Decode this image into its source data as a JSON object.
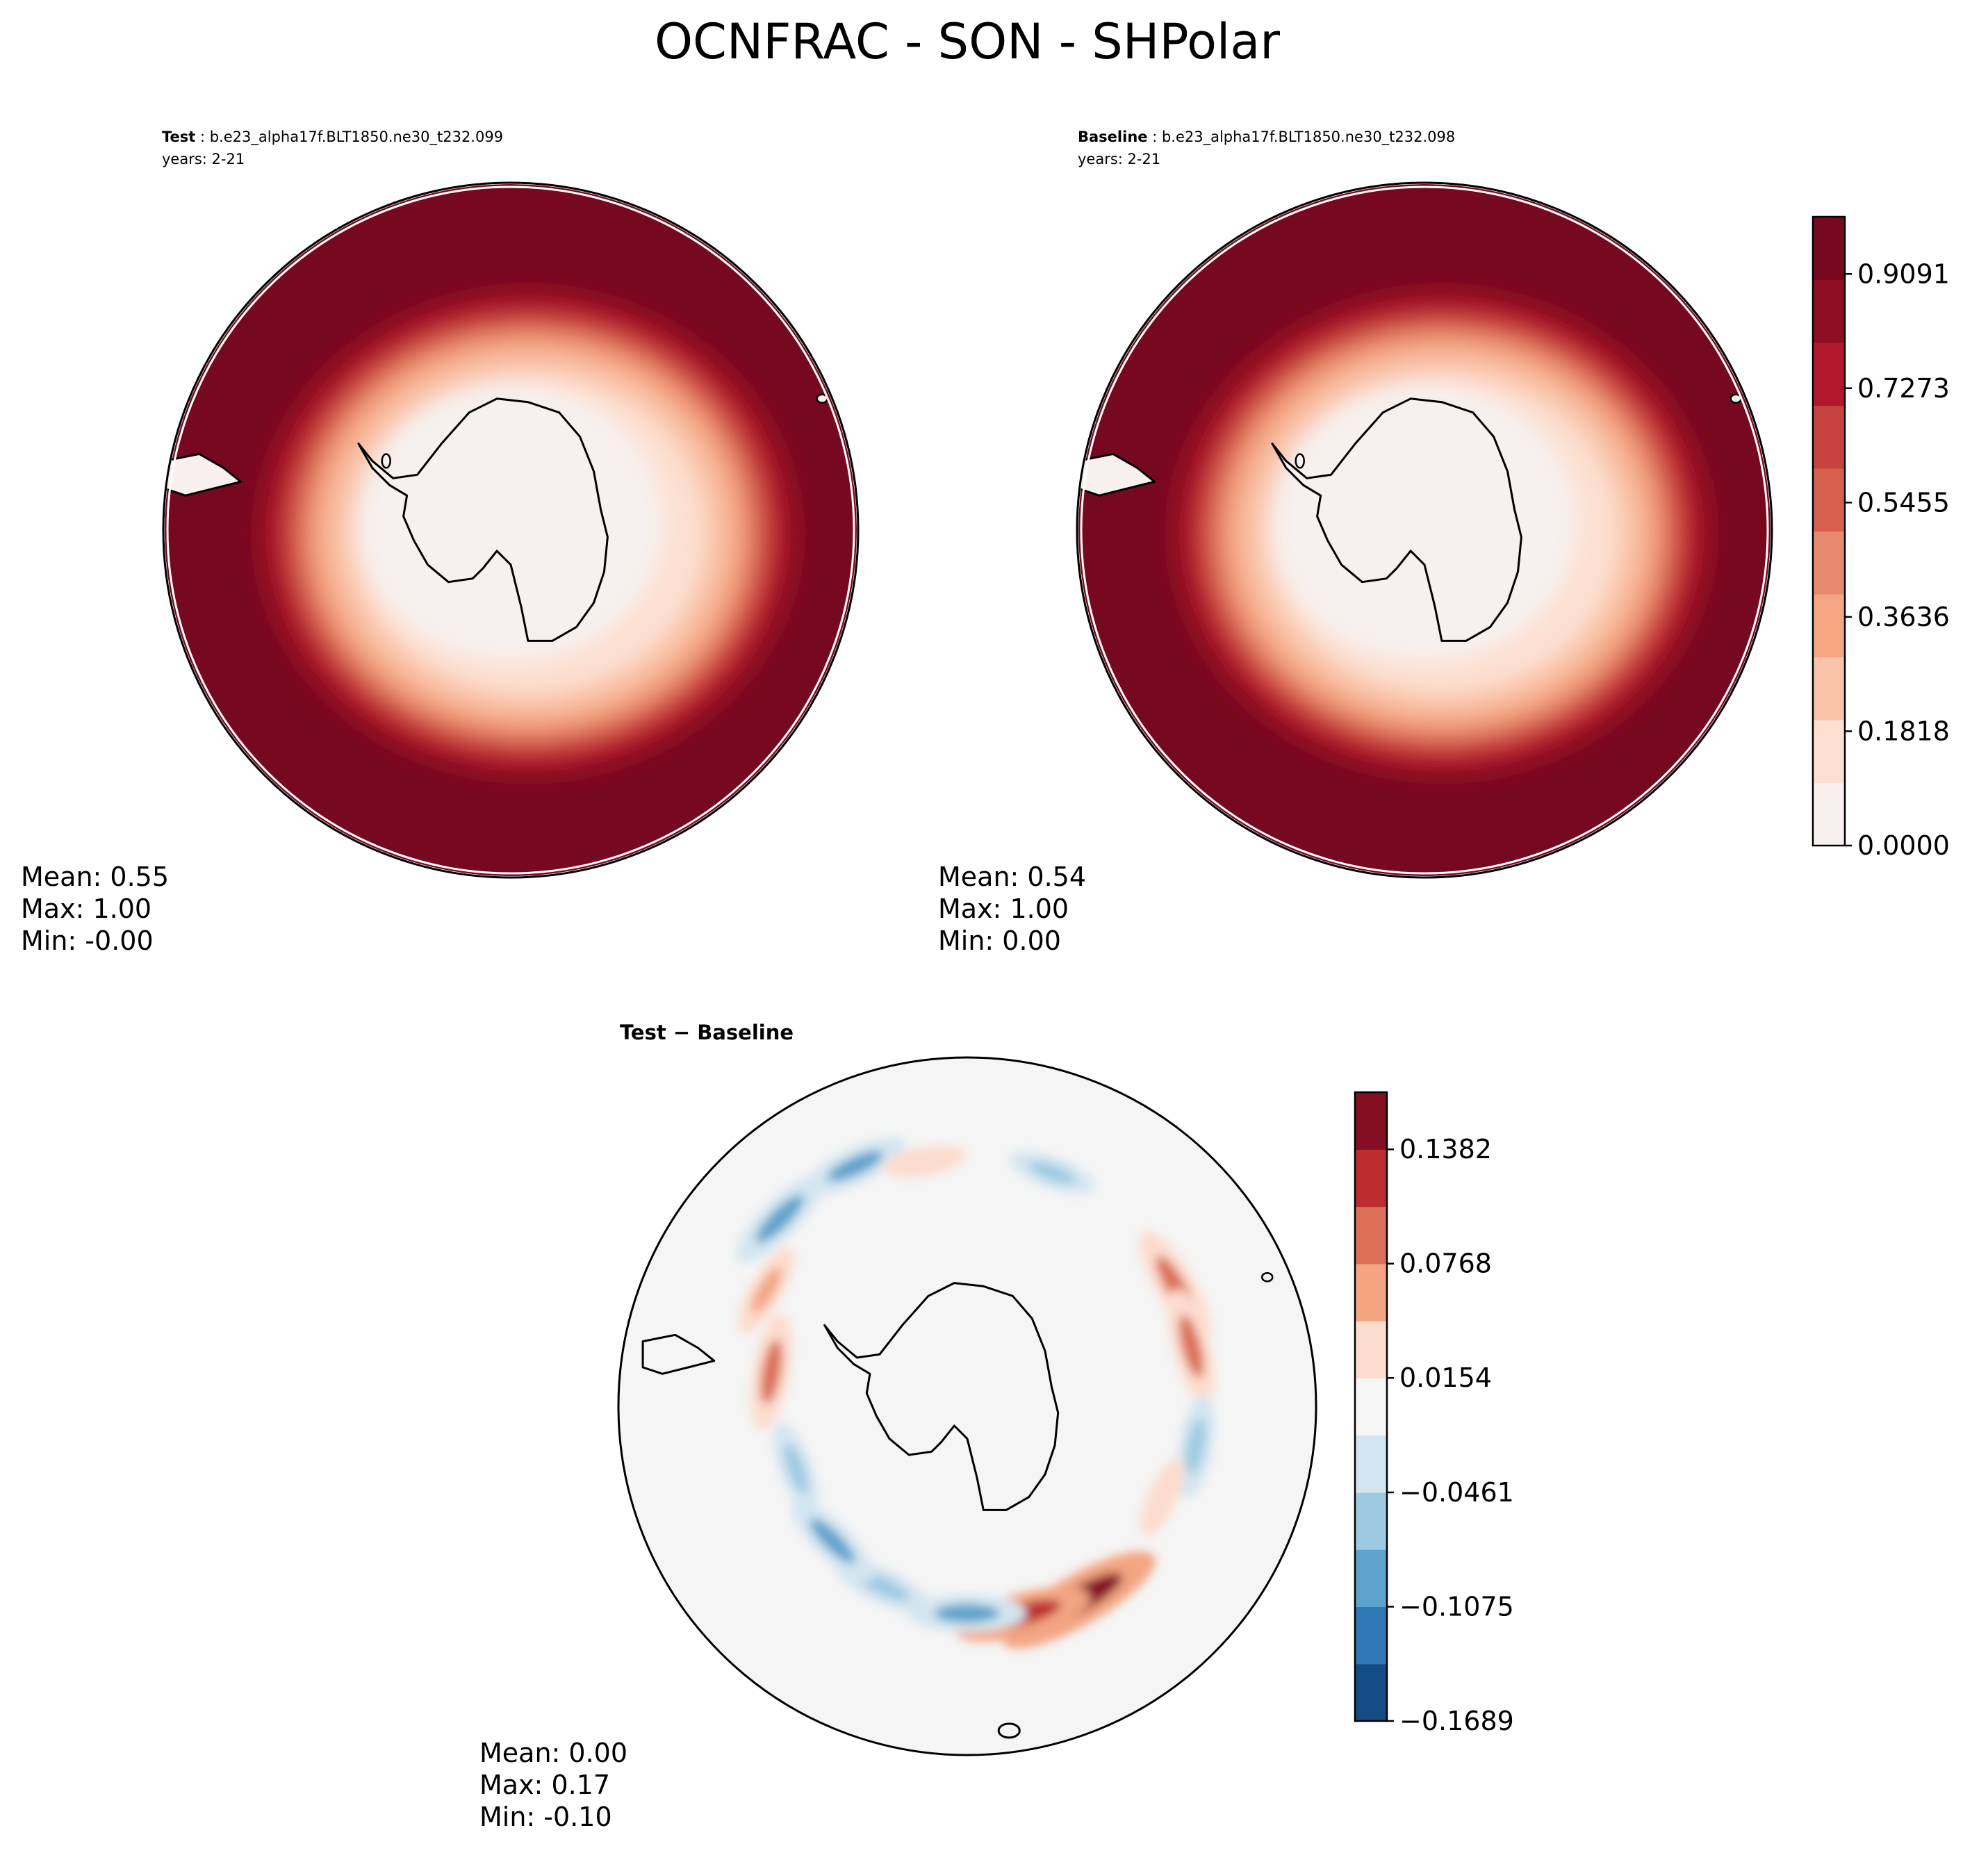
{
  "chart_data": {
    "type": "heatmap",
    "title": "OCNFRAC - SON - SHPolar",
    "panels": [
      {
        "id": "test",
        "label_bold": "Test",
        "label_rest": " : b.e23_alpha17f.BLT1850.ne30_t232.099",
        "years": "years: 2-21",
        "stats": {
          "mean": "Mean:  0.55",
          "max": "Max:  1.00",
          "min": "Min: -0.00"
        },
        "ice_zone": {
          "inner_ring": 0.1,
          "outer_ring": 0.95
        }
      },
      {
        "id": "baseline",
        "label_bold": "Baseline",
        "label_rest": " : b.e23_alpha17f.BLT1850.ne30_t232.098",
        "years": "years: 2-21",
        "stats": {
          "mean": "Mean:  0.54",
          "max": "Max:  1.00",
          "min": "Min:  0.00"
        },
        "ice_zone": {
          "inner_ring": 0.1,
          "outer_ring": 0.95
        }
      },
      {
        "id": "diff",
        "title": "Test − Baseline",
        "stats": {
          "mean": "Mean:  0.00",
          "max": "Max:  0.17",
          "min": "Min: -0.10"
        },
        "anomalies": [
          {
            "lon_deg": 60,
            "lat_deg": -61,
            "value": 0.1
          },
          {
            "lon_deg": 75,
            "lat_deg": -62,
            "value": 0.09
          },
          {
            "lon_deg": 150,
            "lat_deg": -63,
            "value": 0.17
          },
          {
            "lon_deg": 165,
            "lat_deg": -64,
            "value": 0.12
          },
          {
            "lon_deg": 180,
            "lat_deg": -65,
            "value": -0.09
          },
          {
            "lon_deg": 205,
            "lat_deg": -66,
            "value": -0.07
          },
          {
            "lon_deg": 225,
            "lat_deg": -67,
            "value": -0.08
          },
          {
            "lon_deg": 250,
            "lat_deg": -68,
            "value": -0.06
          },
          {
            "lon_deg": 280,
            "lat_deg": -66,
            "value": 0.09
          },
          {
            "lon_deg": 300,
            "lat_deg": -62,
            "value": 0.06
          },
          {
            "lon_deg": 315,
            "lat_deg": -58,
            "value": -0.09
          },
          {
            "lon_deg": 335,
            "lat_deg": -58,
            "value": -0.08
          },
          {
            "lon_deg": 350,
            "lat_deg": -60,
            "value": 0.04
          },
          {
            "lon_deg": 20,
            "lat_deg": -60,
            "value": -0.05
          },
          {
            "lon_deg": 100,
            "lat_deg": -62,
            "value": -0.07
          },
          {
            "lon_deg": 115,
            "lat_deg": -64,
            "value": 0.04
          }
        ]
      }
    ],
    "colorbars": [
      {
        "id": "main",
        "ticks": [
          "0.0000",
          "0.1818",
          "0.3636",
          "0.5455",
          "0.7273",
          "0.9091"
        ],
        "tick_values": [
          0.0,
          0.1818,
          0.3636,
          0.5455,
          0.7273,
          0.9091
        ],
        "range": [
          0,
          1.0
        ],
        "colors": [
          "#f7f0ee",
          "#fde0d2",
          "#f9c4a9",
          "#f4a582",
          "#e88a6e",
          "#d6604d",
          "#c7433f",
          "#b2182b",
          "#8f0d22",
          "#760920"
        ]
      },
      {
        "id": "diff",
        "ticks": [
          "−0.1689",
          "−0.1075",
          "−0.0461",
          "0.0154",
          "0.0768",
          "0.1382"
        ],
        "tick_values": [
          -0.1689,
          -0.1075,
          -0.0461,
          0.0154,
          0.0768,
          0.1382
        ],
        "range": [
          -0.1689,
          0.1689
        ],
        "colors": [
          "#134b85",
          "#2f78b5",
          "#5ea3cc",
          "#9ecae1",
          "#d3e5f0",
          "#f5f5f5",
          "#fcdccd",
          "#f3a582",
          "#dc6f58",
          "#bb2d2f",
          "#850f22"
        ]
      }
    ],
    "land_color": "#f7f0ee",
    "ocean_color": "#760920",
    "diff_background": "#f5f5f5"
  }
}
